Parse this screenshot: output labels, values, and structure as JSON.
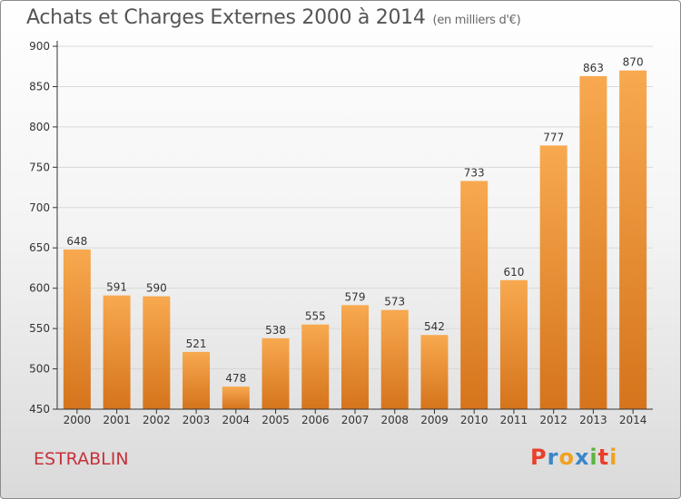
{
  "title": "Achats et Charges Externes 2000 à 2014",
  "subtitle": "(en milliers d'€)",
  "commune": "ESTRABLIN",
  "logo": {
    "letters": [
      "P",
      "r",
      "o",
      "x",
      "i",
      "t",
      "i"
    ],
    "colors": [
      "#e8402b",
      "#3a86c8",
      "#f1a120",
      "#3a86c8",
      "#59b640",
      "#e8402b",
      "#f1a120"
    ]
  },
  "colors": {
    "bar_top": "#f8a94f",
    "bar_bottom": "#d5741c",
    "grid": "#d9d9d9",
    "axis": "#333333",
    "commune": "#c8303b"
  },
  "chart_data": {
    "type": "bar",
    "categories": [
      "2000",
      "2001",
      "2002",
      "2003",
      "2004",
      "2005",
      "2006",
      "2007",
      "2008",
      "2009",
      "2010",
      "2011",
      "2012",
      "2013",
      "2014"
    ],
    "values": [
      648,
      591,
      590,
      521,
      478,
      538,
      555,
      579,
      573,
      542,
      733,
      610,
      777,
      863,
      870
    ],
    "ylim": [
      450,
      900
    ],
    "yticks": [
      450,
      500,
      550,
      600,
      650,
      700,
      750,
      800,
      850,
      900
    ],
    "grid": true,
    "data_labels": true
  }
}
